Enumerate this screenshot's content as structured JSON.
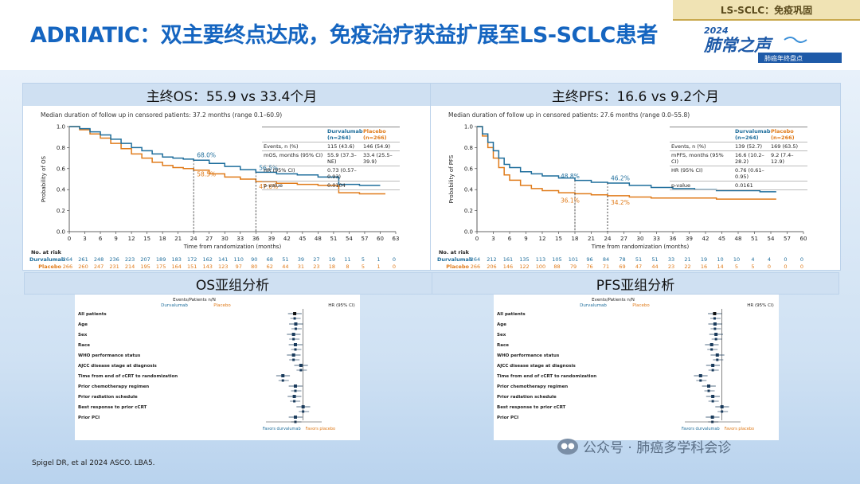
{
  "header": {
    "tag": "LS-SCLC：免疫巩固",
    "title": "ADRIATIC：双主要终点达成，免疫治疗获益扩展至LS-SCLC患者",
    "logo_year": "2024",
    "logo_main": "肺常之声",
    "logo_sub": "肺癌年终盘点"
  },
  "os_panel": {
    "heading": "主终OS：55.9 vs 33.4个月",
    "followup": "Median duration of follow up in censored patients: 37.2 months (range 0.1–60.9)",
    "ylabel": "Probability of OS",
    "xlabel": "Time from randomization (months)",
    "labels": {
      "d_24": "68.0%",
      "d_36": "56.5%",
      "p_24": "58.5%",
      "p_36": "47.6%"
    },
    "table": {
      "col_durva": "Durvalumab (n=264)",
      "col_placebo": "Placebo (n=266)",
      "rows": [
        {
          "k": "Events, n (%)",
          "d": "115 (43.6)",
          "p": "146 (54.9)"
        },
        {
          "k": "mOS, months (95% CI)",
          "d": "55.9 (37.3–NE)",
          "p": "33.4 (25.5–39.9)"
        },
        {
          "k": "HR (95% CI)",
          "d": "0.73 (0.57–0.93)",
          "p": ""
        },
        {
          "k": "p-value",
          "d": "0.0104",
          "p": ""
        }
      ]
    },
    "risk_title": "No. at risk",
    "risk_durva_label": "Durvalumab",
    "risk_placebo_label": "Placebo",
    "risk_durva": [
      "264",
      "261",
      "248",
      "236",
      "223",
      "207",
      "189",
      "183",
      "172",
      "162",
      "141",
      "110",
      "90",
      "68",
      "51",
      "39",
      "27",
      "19",
      "11",
      "5",
      "1",
      "0"
    ],
    "risk_placebo": [
      "266",
      "260",
      "247",
      "231",
      "214",
      "195",
      "175",
      "164",
      "151",
      "143",
      "123",
      "97",
      "80",
      "62",
      "44",
      "31",
      "23",
      "18",
      "8",
      "5",
      "1",
      "0"
    ]
  },
  "pfs_panel": {
    "heading": "主终PFS：16.6 vs 9.2个月",
    "followup": "Median duration of follow up in censored patients: 27.6 months (range 0.0–55.8)",
    "ylabel": "Probability of PFS",
    "xlabel": "Time from randomization (months)",
    "labels": {
      "d_18": "48.8%",
      "d_24": "46.2%",
      "p_18": "36.1%",
      "p_24": "34.2%"
    },
    "table": {
      "col_durva": "Durvalumab (n=264)",
      "col_placebo": "Placebo (n=266)",
      "rows": [
        {
          "k": "Events, n (%)",
          "d": "139 (52.7)",
          "p": "169 (63.5)"
        },
        {
          "k": "mPFS, months (95% CI)",
          "d": "16.6 (10.2–28.2)",
          "p": "9.2 (7.4–12.9)"
        },
        {
          "k": "HR (95% CI)",
          "d": "0.76 (0.61–0.95)",
          "p": ""
        },
        {
          "k": "p-value",
          "d": "0.0161",
          "p": ""
        }
      ]
    },
    "risk_title": "No. at risk",
    "risk_durva_label": "Durvalumab",
    "risk_placebo_label": "Placebo",
    "risk_durva": [
      "264",
      "212",
      "161",
      "135",
      "113",
      "105",
      "101",
      "96",
      "84",
      "78",
      "51",
      "51",
      "33",
      "21",
      "19",
      "10",
      "10",
      "4",
      "4",
      "0",
      "0"
    ],
    "risk_placebo": [
      "266",
      "206",
      "146",
      "122",
      "100",
      "88",
      "79",
      "76",
      "71",
      "69",
      "47",
      "44",
      "23",
      "22",
      "16",
      "14",
      "5",
      "5",
      "0",
      "0",
      "0"
    ]
  },
  "subgroup": {
    "os_heading": "OS亚组分析",
    "pfs_heading": "PFS亚组分析",
    "col_events": "Events/Patients n/N",
    "col_durva": "Durvalumab",
    "col_placebo": "Placebo",
    "col_hr": "HR (95% CI)",
    "favours_durva": "Favors durvalumab",
    "favours_placebo": "Favors placebo",
    "os_rows": [
      "All patients",
      "Age",
      "Sex",
      "Race",
      "WHO performance status",
      "AJCC disease stage at diagnosis",
      "Time from end of cCRT to randomization",
      "Prior chemotherapy regimen",
      "Prior radiation schedule",
      "Best response to prior cCRT",
      "Prior PCI"
    ],
    "os_hr": [
      0.73,
      0.76,
      0.7,
      0.75,
      0.7,
      0.92,
      0.47,
      0.75,
      0.72,
      1.0,
      0.75
    ],
    "pfs_rows": [
      "All patients",
      "Age",
      "Sex",
      "Race",
      "WHO performance status",
      "AJCC disease stage at diagnosis",
      "Time from end of cCRT to randomization",
      "Prior chemotherapy regimen",
      "Prior radiation schedule",
      "Best response to prior cCRT",
      "Prior PCI"
    ],
    "pfs_hr": [
      0.76,
      0.77,
      0.8,
      0.68,
      0.84,
      0.71,
      0.45,
      0.61,
      0.71,
      1.0,
      0.7
    ]
  },
  "footnote": "Spigel DR, et al 2024 ASCO. LBA5.",
  "watermark": "公众号 · 肺癌多学科会诊",
  "colors": {
    "durvalumab": "#1f6e9c",
    "placebo": "#e07b1a",
    "title": "#1565c0"
  }
}
